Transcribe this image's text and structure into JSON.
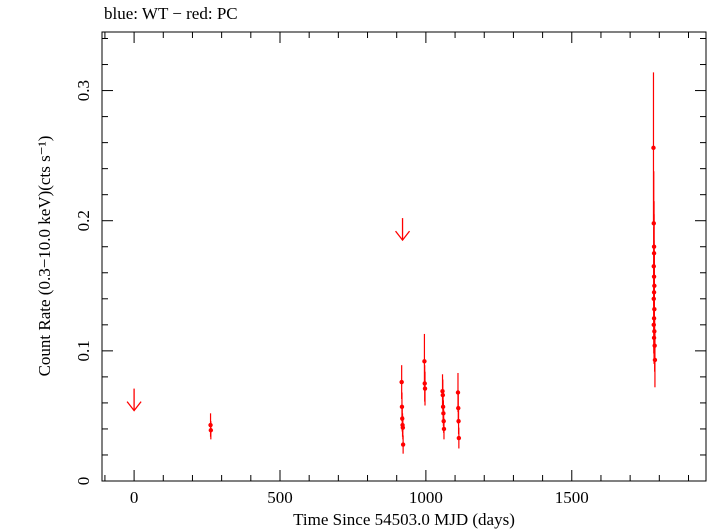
{
  "chart_data": {
    "type": "scatter",
    "title": "blue: WT − red: PC",
    "xlabel": "Time Since 54503.0 MJD (days)",
    "ylabel": "Count Rate (0.3−10.0 keV)(cts s⁻¹)",
    "xlim": [
      -110,
      1960
    ],
    "ylim": [
      0,
      0.345
    ],
    "x_ticks": [
      0,
      500,
      1000,
      1500
    ],
    "x_tick_labels": [
      "0",
      "500",
      "1000",
      "1500"
    ],
    "y_ticks": [
      0,
      0.1,
      0.2,
      0.3
    ],
    "y_tick_labels": [
      "0",
      "0.1",
      "0.2",
      "0.3"
    ],
    "grid": false,
    "series": [
      {
        "name": "PC",
        "color": "#ff0000",
        "points": [
          {
            "x": 262,
            "y": 0.043,
            "yerr": 0.009
          },
          {
            "x": 263,
            "y": 0.039,
            "yerr": 0.007
          },
          {
            "x": 917,
            "y": 0.076,
            "yerr": 0.013
          },
          {
            "x": 918,
            "y": 0.057,
            "yerr": 0.011
          },
          {
            "x": 919,
            "y": 0.048,
            "yerr": 0.01
          },
          {
            "x": 920,
            "y": 0.043,
            "yerr": 0.009
          },
          {
            "x": 921,
            "y": 0.041,
            "yerr": 0.009
          },
          {
            "x": 922,
            "y": 0.028,
            "yerr": 0.007
          },
          {
            "x": 995,
            "y": 0.092,
            "yerr": 0.021
          },
          {
            "x": 996,
            "y": 0.075,
            "yerr": 0.014
          },
          {
            "x": 997,
            "y": 0.071,
            "yerr": 0.013
          },
          {
            "x": 1057,
            "y": 0.069,
            "yerr": 0.013
          },
          {
            "x": 1058,
            "y": 0.066,
            "yerr": 0.012
          },
          {
            "x": 1059,
            "y": 0.057,
            "yerr": 0.011
          },
          {
            "x": 1060,
            "y": 0.052,
            "yerr": 0.01
          },
          {
            "x": 1061,
            "y": 0.046,
            "yerr": 0.009
          },
          {
            "x": 1062,
            "y": 0.04,
            "yerr": 0.008
          },
          {
            "x": 1110,
            "y": 0.068,
            "yerr": 0.015
          },
          {
            "x": 1111,
            "y": 0.056,
            "yerr": 0.012
          },
          {
            "x": 1112,
            "y": 0.046,
            "yerr": 0.01
          },
          {
            "x": 1113,
            "y": 0.033,
            "yerr": 0.008
          },
          {
            "x": 1780,
            "y": 0.256,
            "yerr": 0.058
          },
          {
            "x": 1781,
            "y": 0.198,
            "yerr": 0.04
          },
          {
            "x": 1782,
            "y": 0.18,
            "yerr": 0.035
          },
          {
            "x": 1782,
            "y": 0.175,
            "yerr": 0.03
          },
          {
            "x": 1781,
            "y": 0.165,
            "yerr": 0.03
          },
          {
            "x": 1782,
            "y": 0.157,
            "yerr": 0.028
          },
          {
            "x": 1783,
            "y": 0.15,
            "yerr": 0.027
          },
          {
            "x": 1782,
            "y": 0.145,
            "yerr": 0.026
          },
          {
            "x": 1781,
            "y": 0.14,
            "yerr": 0.025
          },
          {
            "x": 1783,
            "y": 0.132,
            "yerr": 0.024
          },
          {
            "x": 1782,
            "y": 0.125,
            "yerr": 0.023
          },
          {
            "x": 1781,
            "y": 0.12,
            "yerr": 0.022
          },
          {
            "x": 1783,
            "y": 0.115,
            "yerr": 0.021
          },
          {
            "x": 1782,
            "y": 0.11,
            "yerr": 0.02
          },
          {
            "x": 1784,
            "y": 0.104,
            "yerr": 0.02
          },
          {
            "x": 1785,
            "y": 0.093,
            "yerr": 0.021
          }
        ]
      }
    ],
    "upper_limits": [
      {
        "x": 0,
        "y": 0.071,
        "color": "#ff0000"
      },
      {
        "x": 920,
        "y": 0.202,
        "color": "#ff0000"
      }
    ]
  }
}
